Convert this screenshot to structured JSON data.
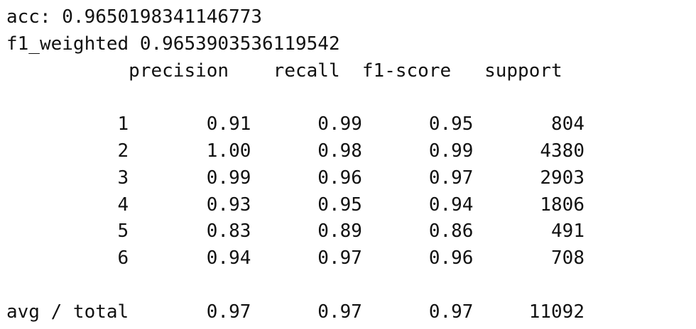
{
  "acc_line": "acc: 0.9650198341146773",
  "f1_line": "f1_weighted 0.9653903536119542",
  "report": {
    "header": "           precision    recall  f1-score   support",
    "rows": [
      "          1       0.91      0.99      0.95       804",
      "          2       1.00      0.98      0.99      4380",
      "          3       0.99      0.96      0.97      2903",
      "          4       0.93      0.95      0.94      1806",
      "          5       0.83      0.89      0.86       491",
      "          6       0.94      0.97      0.96       708"
    ],
    "total": "avg / total       0.97      0.97      0.97     11092"
  }
}
